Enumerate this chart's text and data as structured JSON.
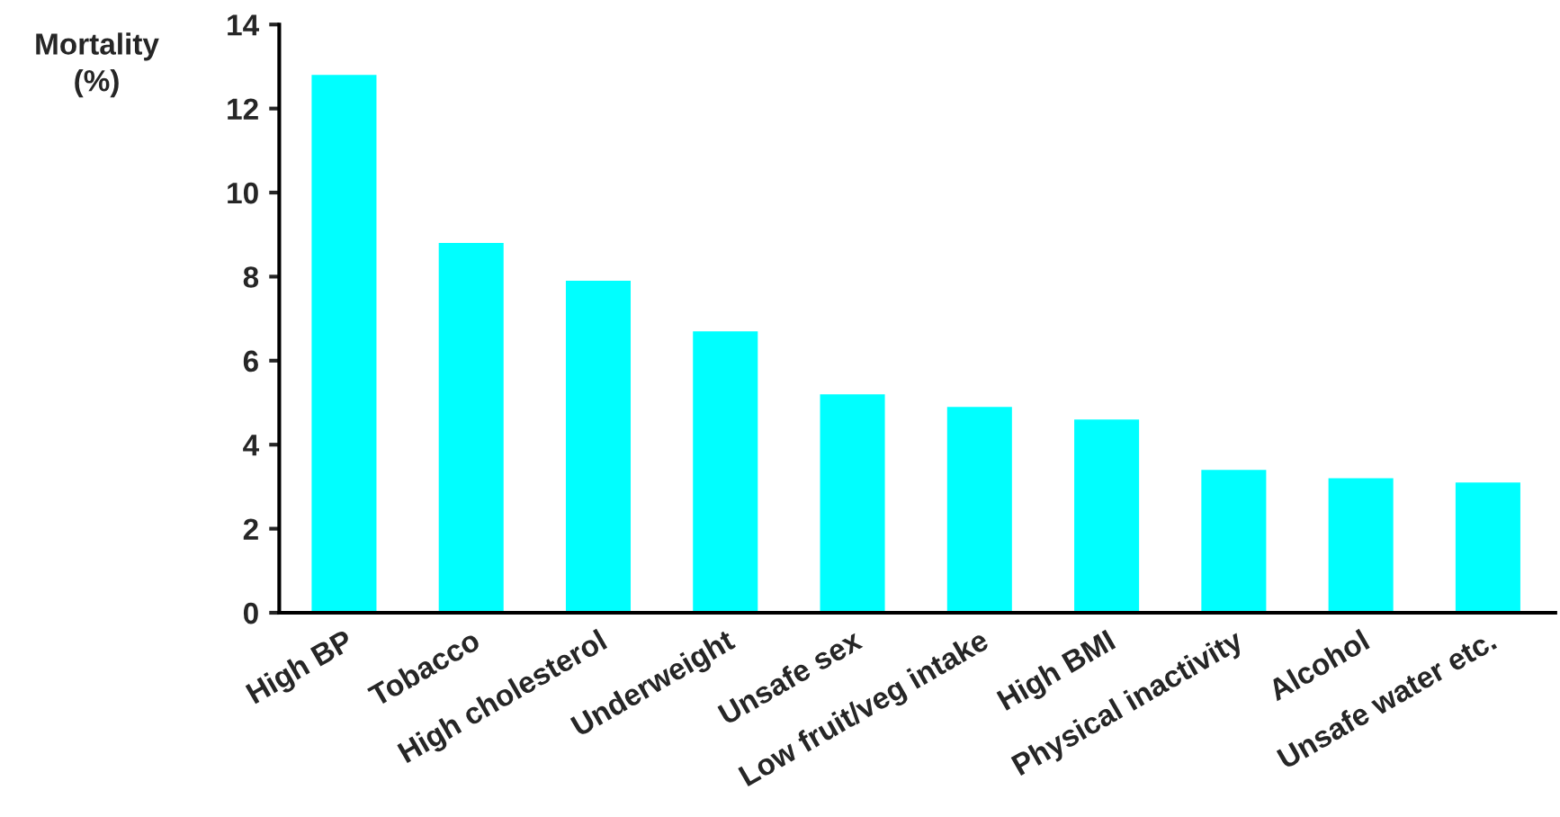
{
  "chart_data": {
    "type": "bar",
    "ylabel": "Mortality\n(%)",
    "categories": [
      "High BP",
      "Tobacco",
      "High cholesterol",
      "Underweight",
      "Unsafe sex",
      "Low fruit/veg intake",
      "High BMI",
      "Physical inactivity",
      "Alcohol",
      "Unsafe water etc."
    ],
    "values": [
      12.8,
      8.8,
      7.9,
      6.7,
      5.2,
      4.9,
      4.6,
      3.4,
      3.2,
      3.1
    ],
    "color": "#00ffff",
    "ylim": [
      0,
      14
    ],
    "yticks": [
      0,
      2,
      4,
      6,
      8,
      10,
      12,
      14
    ],
    "grid": false
  }
}
